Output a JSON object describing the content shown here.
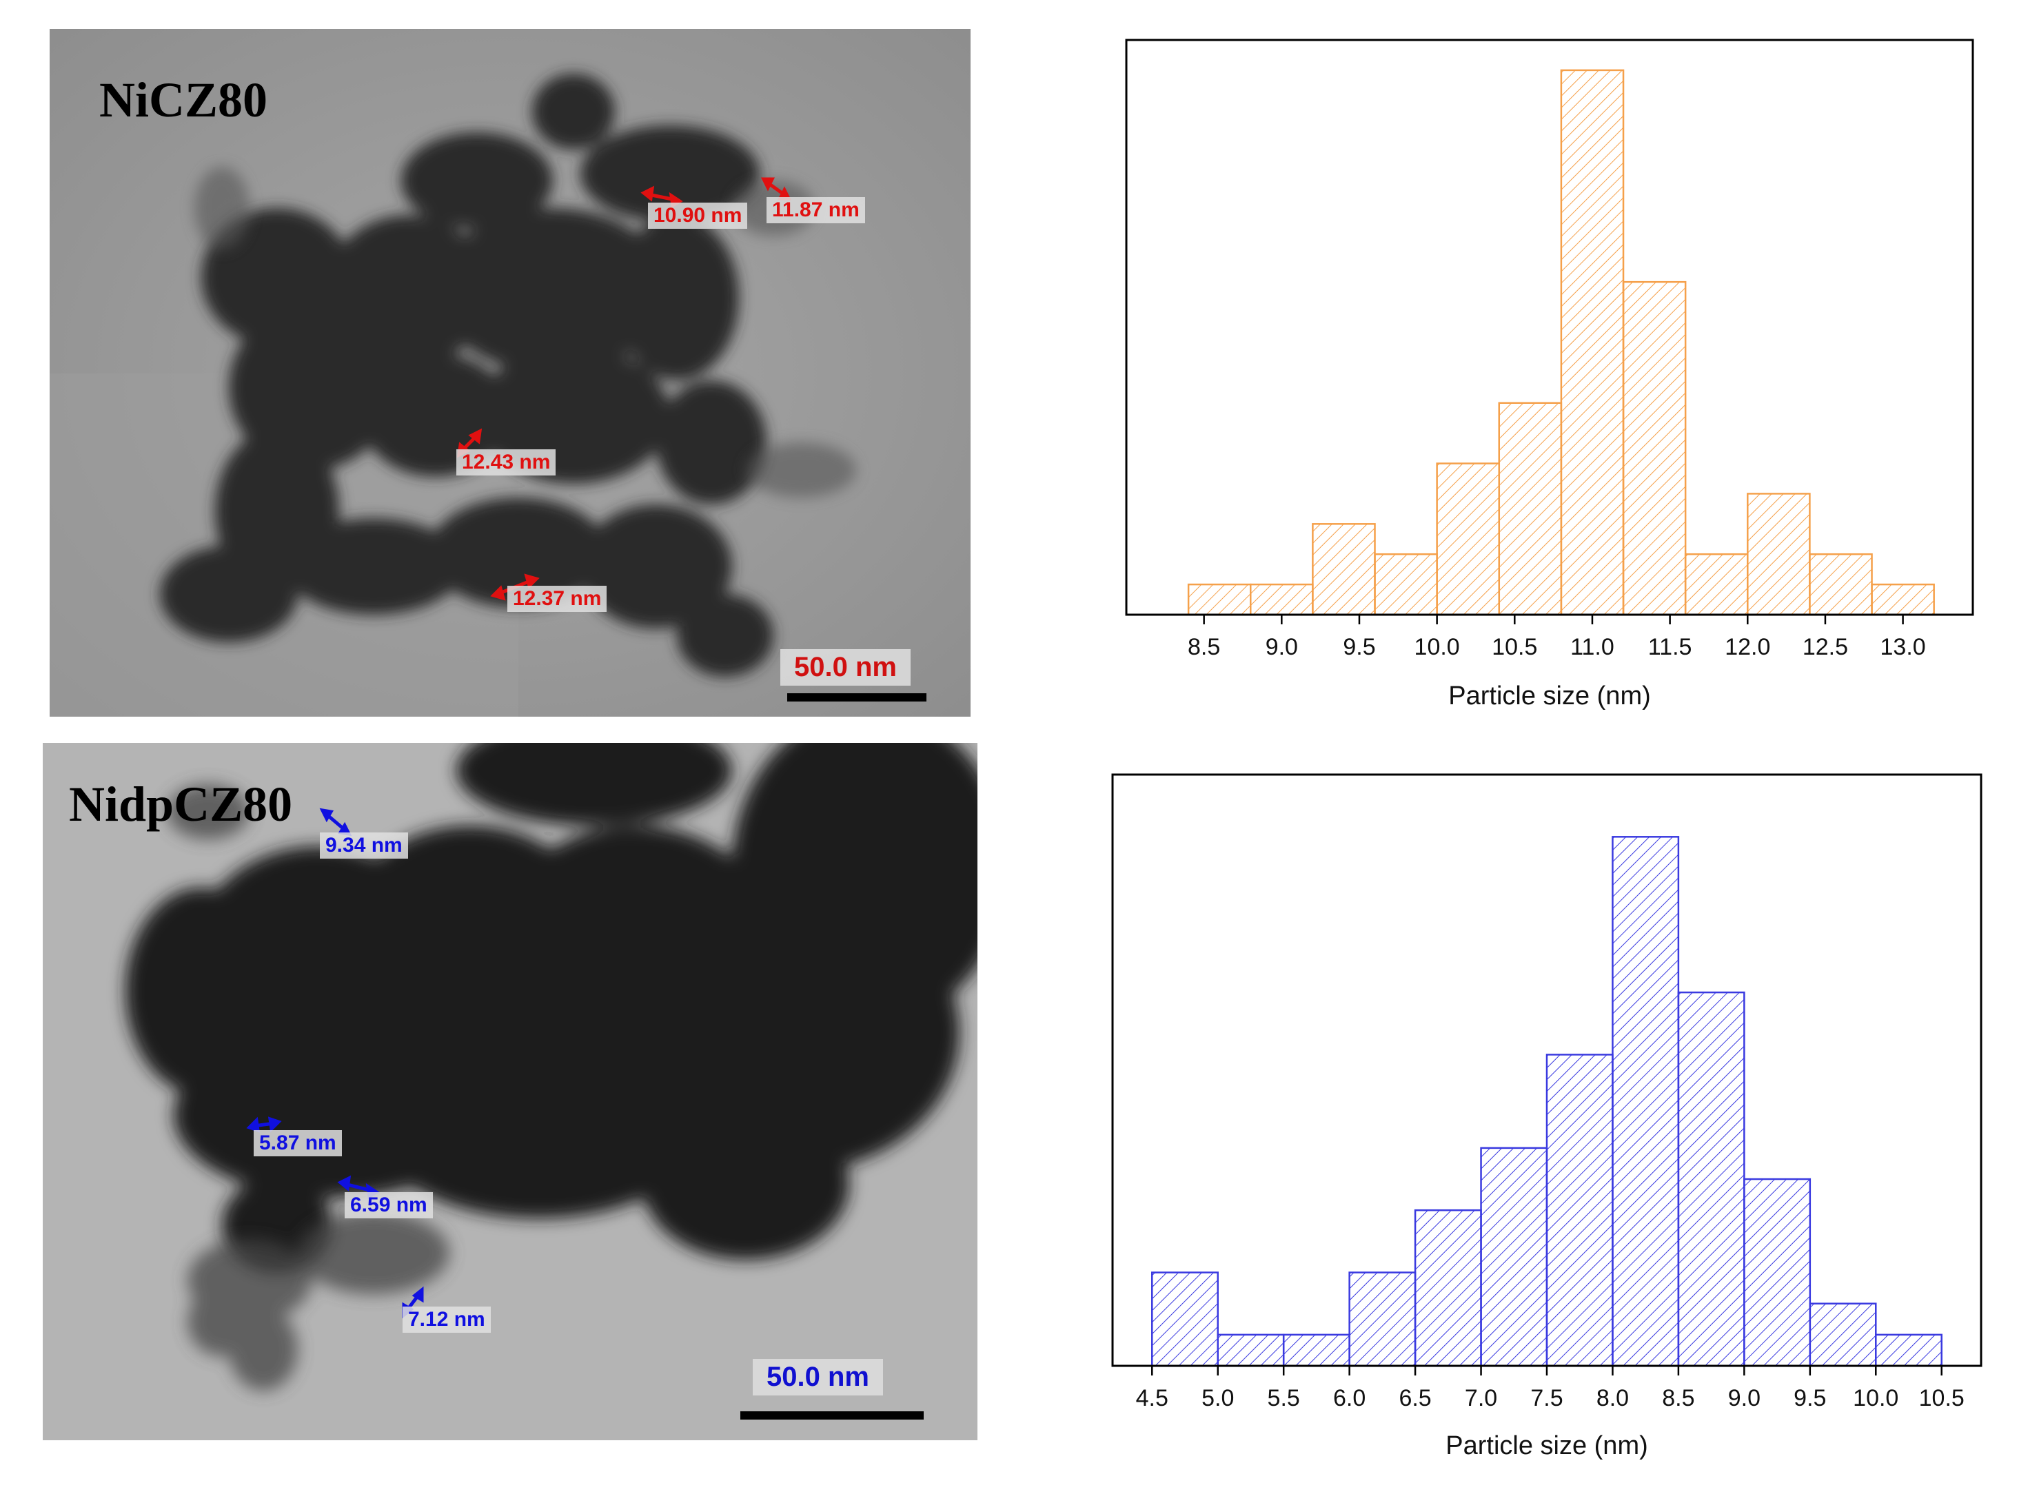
{
  "tem_images": [
    {
      "sample_label": "NiCZ80",
      "measurements": [
        "10.90 nm",
        "11.87 nm",
        "12.43 nm",
        "12.37 nm"
      ],
      "scale_bar": "50.0 nm",
      "annotation_color": "#e01010"
    },
    {
      "sample_label": "NidpCZ80",
      "measurements": [
        "9.34 nm",
        "5.87 nm",
        "6.59 nm",
        "7.12 nm"
      ],
      "scale_bar": "50.0 nm",
      "annotation_color": "#1010e0"
    }
  ],
  "chart_data": [
    {
      "type": "bar",
      "title": "",
      "xlabel": "Particle size (nm)",
      "ylabel": "",
      "color": "#f5a04a",
      "fill_pattern": "diagonal-hatch",
      "x_ticks": [
        "8.5",
        "9.0",
        "9.5",
        "10.0",
        "10.5",
        "11.0",
        "11.5",
        "12.0",
        "12.5",
        "13.0"
      ],
      "x_tick_values": [
        8.5,
        9.0,
        9.5,
        10.0,
        10.5,
        11.0,
        11.5,
        12.0,
        12.5,
        13.0
      ],
      "xlim": [
        8.0,
        13.45
      ],
      "ylim": [
        0,
        19
      ],
      "bins": [
        {
          "x0": 8.4,
          "x1": 8.8,
          "value": 1
        },
        {
          "x0": 8.8,
          "x1": 9.2,
          "value": 1
        },
        {
          "x0": 9.2,
          "x1": 9.6,
          "value": 3
        },
        {
          "x0": 9.6,
          "x1": 10.0,
          "value": 2
        },
        {
          "x0": 10.0,
          "x1": 10.4,
          "value": 5
        },
        {
          "x0": 10.4,
          "x1": 10.8,
          "value": 7
        },
        {
          "x0": 10.8,
          "x1": 11.2,
          "value": 18
        },
        {
          "x0": 11.2,
          "x1": 11.6,
          "value": 11
        },
        {
          "x0": 11.6,
          "x1": 12.0,
          "value": 2
        },
        {
          "x0": 12.0,
          "x1": 12.4,
          "value": 4
        },
        {
          "x0": 12.4,
          "x1": 12.8,
          "value": 2
        },
        {
          "x0": 12.8,
          "x1": 13.2,
          "value": 1
        }
      ],
      "grid": false
    },
    {
      "type": "bar",
      "title": "",
      "xlabel": "Particle size (nm)",
      "ylabel": "",
      "color": "#3a3ae0",
      "fill_pattern": "diagonal-hatch",
      "x_ticks": [
        "4.5",
        "5.0",
        "5.5",
        "6.0",
        "6.5",
        "7.0",
        "7.5",
        "8.0",
        "8.5",
        "9.0",
        "9.5",
        "10.0",
        "10.5"
      ],
      "x_tick_values": [
        4.5,
        5.0,
        5.5,
        6.0,
        6.5,
        7.0,
        7.5,
        8.0,
        8.5,
        9.0,
        9.5,
        10.0,
        10.5
      ],
      "xlim": [
        4.2,
        10.8
      ],
      "ylim": [
        0,
        19
      ],
      "bins": [
        {
          "x0": 4.5,
          "x1": 5.0,
          "value": 3
        },
        {
          "x0": 5.0,
          "x1": 5.5,
          "value": 1
        },
        {
          "x0": 5.5,
          "x1": 6.0,
          "value": 1
        },
        {
          "x0": 6.0,
          "x1": 6.5,
          "value": 3
        },
        {
          "x0": 6.5,
          "x1": 7.0,
          "value": 5
        },
        {
          "x0": 7.0,
          "x1": 7.5,
          "value": 7
        },
        {
          "x0": 7.5,
          "x1": 8.0,
          "value": 10
        },
        {
          "x0": 8.0,
          "x1": 8.5,
          "value": 17
        },
        {
          "x0": 8.5,
          "x1": 9.0,
          "value": 12
        },
        {
          "x0": 9.0,
          "x1": 9.5,
          "value": 6
        },
        {
          "x0": 9.5,
          "x1": 10.0,
          "value": 2
        },
        {
          "x0": 10.0,
          "x1": 10.5,
          "value": 1
        }
      ],
      "grid": false
    }
  ]
}
